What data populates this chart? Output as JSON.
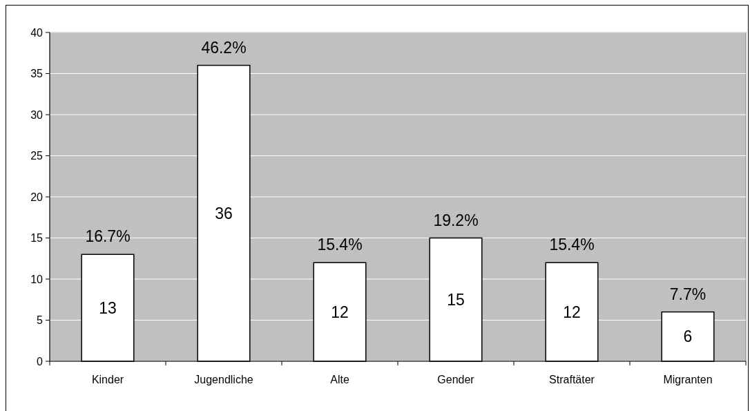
{
  "chart_data": {
    "type": "bar",
    "categories": [
      "Kinder",
      "Jugendliche",
      "Alte",
      "Gender",
      "Straftäter",
      "Migranten"
    ],
    "values": [
      13,
      36,
      12,
      15,
      12,
      6
    ],
    "color": "#ffffff",
    "ylim": [
      0,
      40
    ],
    "yticks": [
      0,
      5,
      10,
      15,
      20,
      25,
      30,
      35,
      40
    ],
    "grid": "y",
    "data_labels": true,
    "annotations": [
      {
        "text": "16.7%",
        "x": "Kinder",
        "y": 13
      },
      {
        "text": "46.2%",
        "x": "Jugendliche",
        "y": 36
      },
      {
        "text": "15.4%",
        "x": "Alte",
        "y": 12
      },
      {
        "text": "19.2%",
        "x": "Gender",
        "y": 15
      },
      {
        "text": "15.4%",
        "x": "Straftäter",
        "y": 12
      },
      {
        "text": "7.7%",
        "x": "Migranten",
        "y": 6
      }
    ]
  }
}
